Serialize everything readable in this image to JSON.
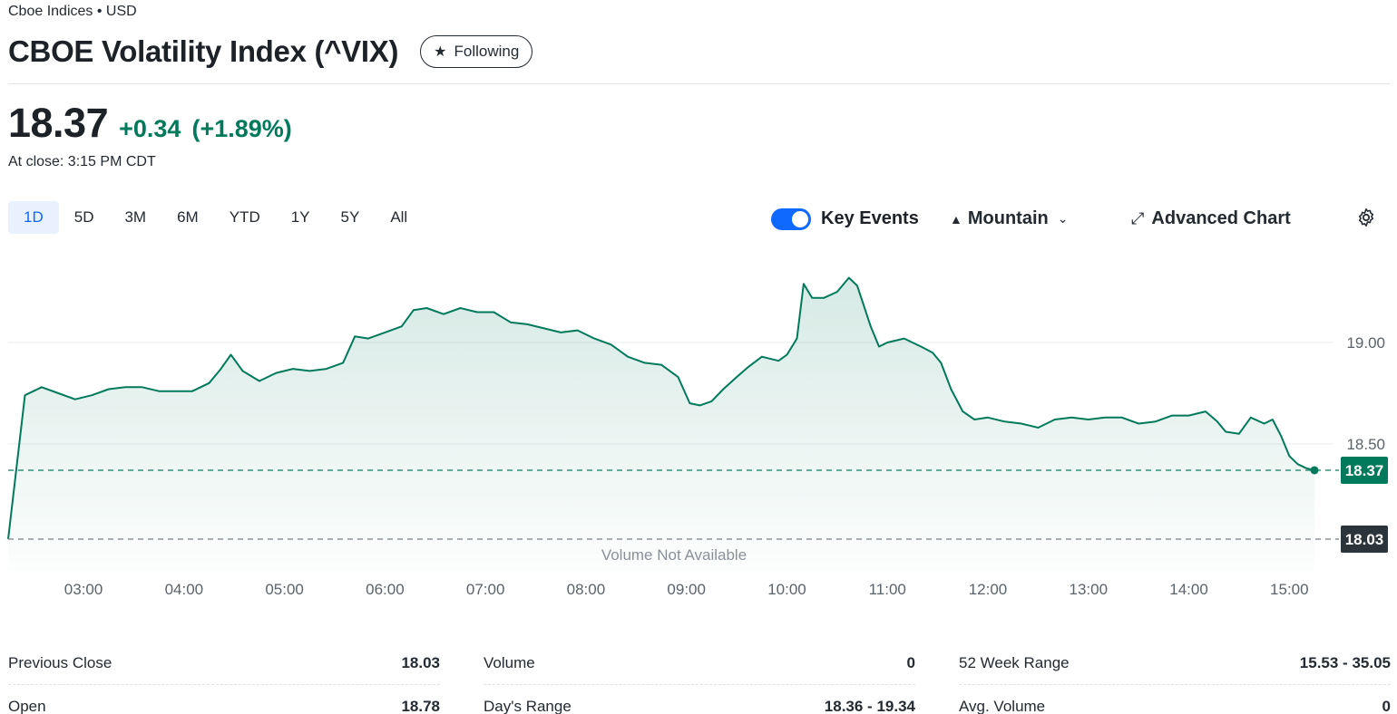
{
  "header": {
    "exchange": "Cboe Indices • USD",
    "title": "CBOE Volatility Index (^VIX)",
    "follow_label": "Following"
  },
  "quote": {
    "price": "18.37",
    "change": "+0.34",
    "change_pct": "(+1.89%)",
    "close_time": "At close: 3:15 PM CDT",
    "positive_color": "#007a5a"
  },
  "ranges": [
    "1D",
    "5D",
    "3M",
    "6M",
    "YTD",
    "1Y",
    "5Y",
    "All"
  ],
  "active_range": "1D",
  "toolbar": {
    "key_events_label": "Key Events",
    "key_events_on": true,
    "chart_type_label": "Mountain",
    "advanced_label": "Advanced Chart"
  },
  "chart_data": {
    "type": "area",
    "x_ticks": [
      "03:00",
      "04:00",
      "05:00",
      "06:00",
      "07:00",
      "08:00",
      "09:00",
      "10:00",
      "11:00",
      "12:00",
      "13:00",
      "14:00",
      "15:00"
    ],
    "y_ticks": [
      "19.00",
      "18.50"
    ],
    "ylim": [
      18.03,
      19.34
    ],
    "previous_close": 18.03,
    "previous_close_label": "18.03",
    "last_price": 18.37,
    "last_price_label": "18.37",
    "volume_note": "Volume Not Available",
    "line_color": "#007a5a",
    "points": [
      [
        "02:15",
        18.03
      ],
      [
        "02:25",
        18.74
      ],
      [
        "02:35",
        18.78
      ],
      [
        "02:45",
        18.75
      ],
      [
        "02:55",
        18.72
      ],
      [
        "03:05",
        18.74
      ],
      [
        "03:15",
        18.77
      ],
      [
        "03:25",
        18.78
      ],
      [
        "03:35",
        18.78
      ],
      [
        "03:45",
        18.76
      ],
      [
        "03:55",
        18.76
      ],
      [
        "04:05",
        18.76
      ],
      [
        "04:15",
        18.8
      ],
      [
        "04:22",
        18.87
      ],
      [
        "04:28",
        18.94
      ],
      [
        "04:35",
        18.86
      ],
      [
        "04:45",
        18.81
      ],
      [
        "04:55",
        18.85
      ],
      [
        "05:05",
        18.87
      ],
      [
        "05:15",
        18.86
      ],
      [
        "05:25",
        18.87
      ],
      [
        "05:35",
        18.9
      ],
      [
        "05:42",
        19.03
      ],
      [
        "05:50",
        19.02
      ],
      [
        "06:00",
        19.05
      ],
      [
        "06:10",
        19.08
      ],
      [
        "06:17",
        19.16
      ],
      [
        "06:25",
        19.17
      ],
      [
        "06:35",
        19.14
      ],
      [
        "06:45",
        19.17
      ],
      [
        "06:55",
        19.15
      ],
      [
        "07:05",
        19.15
      ],
      [
        "07:15",
        19.1
      ],
      [
        "07:25",
        19.09
      ],
      [
        "07:35",
        19.07
      ],
      [
        "07:45",
        19.05
      ],
      [
        "07:55",
        19.06
      ],
      [
        "08:05",
        19.02
      ],
      [
        "08:15",
        18.99
      ],
      [
        "08:25",
        18.93
      ],
      [
        "08:35",
        18.9
      ],
      [
        "08:45",
        18.89
      ],
      [
        "08:55",
        18.83
      ],
      [
        "09:02",
        18.7
      ],
      [
        "09:08",
        18.69
      ],
      [
        "09:15",
        18.71
      ],
      [
        "09:22",
        18.77
      ],
      [
        "09:30",
        18.83
      ],
      [
        "09:37",
        18.88
      ],
      [
        "09:45",
        18.93
      ],
      [
        "09:55",
        18.91
      ],
      [
        "10:00",
        18.94
      ],
      [
        "10:06",
        19.02
      ],
      [
        "10:10",
        19.29
      ],
      [
        "10:15",
        19.22
      ],
      [
        "10:22",
        19.22
      ],
      [
        "10:30",
        19.25
      ],
      [
        "10:37",
        19.32
      ],
      [
        "10:42",
        19.28
      ],
      [
        "10:46",
        19.18
      ],
      [
        "10:50",
        19.08
      ],
      [
        "10:55",
        18.98
      ],
      [
        "11:00",
        19.0
      ],
      [
        "11:10",
        19.02
      ],
      [
        "11:20",
        18.98
      ],
      [
        "11:27",
        18.95
      ],
      [
        "11:32",
        18.9
      ],
      [
        "11:38",
        18.77
      ],
      [
        "11:45",
        18.66
      ],
      [
        "11:52",
        18.62
      ],
      [
        "12:00",
        18.63
      ],
      [
        "12:10",
        18.61
      ],
      [
        "12:20",
        18.6
      ],
      [
        "12:30",
        18.58
      ],
      [
        "12:40",
        18.62
      ],
      [
        "12:50",
        18.63
      ],
      [
        "13:00",
        18.62
      ],
      [
        "13:10",
        18.63
      ],
      [
        "13:20",
        18.63
      ],
      [
        "13:30",
        18.6
      ],
      [
        "13:40",
        18.61
      ],
      [
        "13:50",
        18.64
      ],
      [
        "14:00",
        18.64
      ],
      [
        "14:10",
        18.66
      ],
      [
        "14:17",
        18.61
      ],
      [
        "14:22",
        18.56
      ],
      [
        "14:30",
        18.55
      ],
      [
        "14:37",
        18.63
      ],
      [
        "14:45",
        18.6
      ],
      [
        "14:50",
        18.62
      ],
      [
        "14:55",
        18.54
      ],
      [
        "15:00",
        18.44
      ],
      [
        "15:05",
        18.4
      ],
      [
        "15:10",
        18.38
      ],
      [
        "15:15",
        18.37
      ]
    ]
  },
  "stats": [
    [
      {
        "label": "Previous Close",
        "value": "18.03"
      },
      {
        "label": "Open",
        "value": "18.78"
      }
    ],
    [
      {
        "label": "Volume",
        "value": "0"
      },
      {
        "label": "Day's Range",
        "value": "18.36 - 19.34"
      }
    ],
    [
      {
        "label": "52 Week Range",
        "value": "15.53 - 35.05"
      },
      {
        "label": "Avg. Volume",
        "value": "0"
      }
    ]
  ]
}
